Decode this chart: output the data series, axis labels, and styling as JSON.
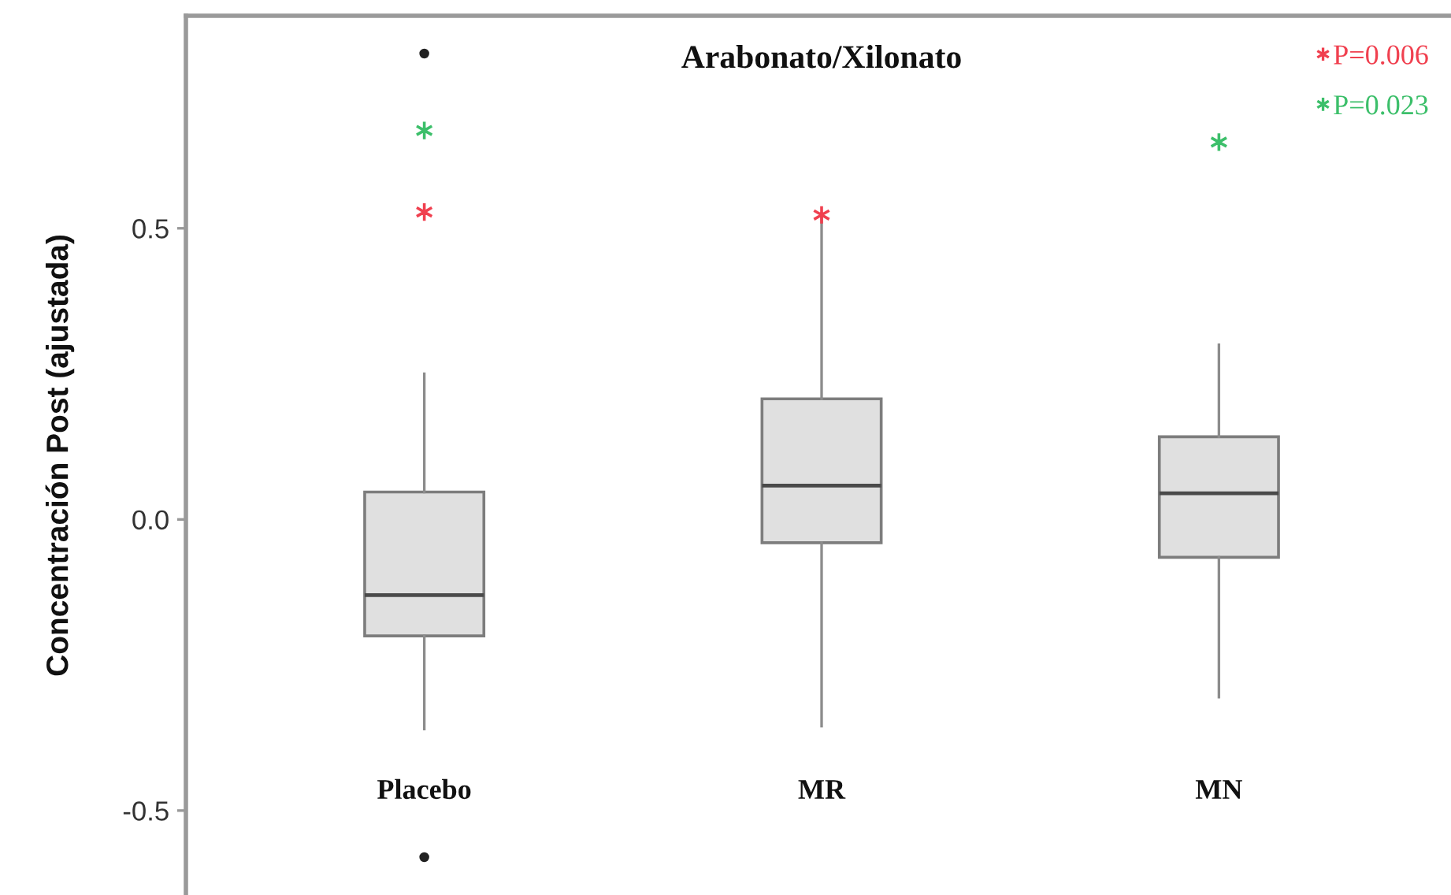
{
  "chart_data": {
    "type": "box",
    "title": "Arabonato/Xilonato",
    "ylabel": "Concentración Post (ajustada)",
    "categories": [
      "Placebo",
      "MR",
      "MN"
    ],
    "ylim": [
      -0.645,
      0.865
    ],
    "yticks": [
      -0.5,
      {
        "value": 0,
        "label": "0.0"
      },
      0.5
    ],
    "legend": "top right",
    "series": [
      {
        "type": "box",
        "color": "#e0e0e0",
        "boxes": [
          {
            "low": -0.36,
            "q1": -0.2,
            "median": -0.13,
            "q3": 0.047,
            "high": 0.25,
            "outliers": [
              0.8,
              -0.58
            ]
          },
          {
            "low": -0.355,
            "q1": -0.04,
            "median": 0.058,
            "q3": 0.207,
            "high": 0.52
          },
          {
            "low": -0.305,
            "q1": -0.065,
            "median": 0.045,
            "q3": 0.142,
            "high": 0.3
          }
        ]
      },
      {
        "type": "scatter",
        "name": "P=0.006",
        "color": "#f0404f",
        "marker": "cross",
        "x": [
          "Placebo",
          "MR"
        ],
        "values": [
          0.528,
          0.523
        ]
      },
      {
        "type": "scatter",
        "name": "P=0.023",
        "color": "#3cbf6a",
        "marker": "cross",
        "x": [
          "Placebo",
          "MN"
        ],
        "values": [
          0.668,
          0.648
        ]
      }
    ]
  }
}
